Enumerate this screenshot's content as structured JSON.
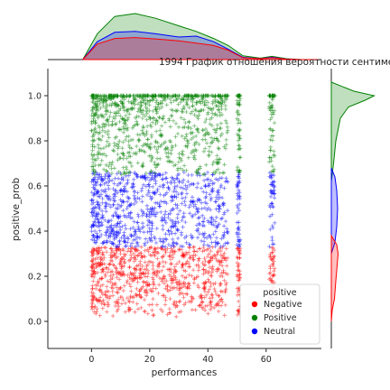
{
  "chart_data": {
    "type": "scatter",
    "title": "1994 График отношения вероятности сентиме",
    "xlabel": "performances",
    "ylabel": "positive_prob",
    "xlim": [
      -15,
      79
    ],
    "ylim": [
      -0.12,
      1.12
    ],
    "xticks": [
      0,
      20,
      40,
      60
    ],
    "yticks": [
      0.0,
      0.2,
      0.4,
      0.6,
      0.8,
      1.0
    ],
    "xtick_labels": [
      "0",
      "20",
      "40",
      "60"
    ],
    "ytick_labels": [
      "0.0",
      "0.2",
      "0.4",
      "0.6",
      "0.8",
      "1.0"
    ],
    "marker": "+",
    "grid": false,
    "legend": {
      "title": "positive",
      "placement": "lower-right",
      "entries": [
        "Negative",
        "Positive",
        "Neutral"
      ]
    },
    "series": [
      {
        "name": "Negative",
        "color": "#ff0000",
        "y_range": [
          0.02,
          0.33
        ],
        "x_clusters": [
          [
            0,
            47
          ],
          [
            50,
            51
          ],
          [
            61,
            63
          ]
        ]
      },
      {
        "name": "Positive",
        "color": "#008000",
        "y_range": [
          0.65,
          1.0
        ],
        "x_clusters": [
          [
            0,
            47
          ],
          [
            50,
            51
          ],
          [
            61,
            63
          ]
        ]
      },
      {
        "name": "Neutral",
        "color": "#0000ff",
        "y_range": [
          0.33,
          0.66
        ],
        "x_clusters": [
          [
            0,
            47
          ],
          [
            50,
            51
          ],
          [
            61,
            63
          ]
        ]
      }
    ],
    "marginal_x": {
      "type": "kde",
      "series": [
        {
          "name": "Positive",
          "x": [
            -3,
            2,
            8,
            15,
            22,
            30,
            36,
            42,
            47,
            52,
            58,
            62,
            67,
            72,
            78
          ],
          "density": [
            0.0,
            0.55,
            0.92,
            0.98,
            0.88,
            0.72,
            0.6,
            0.45,
            0.3,
            0.08,
            0.03,
            0.07,
            0.02,
            0.0,
            0.0
          ]
        },
        {
          "name": "Neutral",
          "x": [
            -3,
            2,
            8,
            15,
            22,
            30,
            36,
            42,
            47,
            52,
            58,
            62,
            67,
            72,
            78
          ],
          "density": [
            0.0,
            0.38,
            0.58,
            0.6,
            0.55,
            0.48,
            0.5,
            0.38,
            0.22,
            0.05,
            0.02,
            0.05,
            0.01,
            0.0,
            0.0
          ]
        },
        {
          "name": "Negative",
          "x": [
            -3,
            2,
            8,
            15,
            22,
            30,
            36,
            42,
            47,
            52,
            58,
            62,
            67,
            72,
            78
          ],
          "density": [
            0.0,
            0.33,
            0.45,
            0.47,
            0.44,
            0.4,
            0.35,
            0.3,
            0.2,
            0.04,
            0.02,
            0.04,
            0.01,
            0.0,
            0.0
          ]
        }
      ]
    },
    "marginal_y": {
      "type": "kde",
      "series": [
        {
          "name": "Positive",
          "y": [
            0.62,
            0.7,
            0.8,
            0.9,
            0.95,
            0.98,
            1.0,
            1.02,
            1.06
          ],
          "density": [
            0.0,
            0.05,
            0.1,
            0.2,
            0.38,
            0.75,
            0.95,
            0.5,
            0.0
          ]
        },
        {
          "name": "Neutral",
          "y": [
            0.3,
            0.35,
            0.42,
            0.5,
            0.58,
            0.64,
            0.68
          ],
          "density": [
            0.0,
            0.08,
            0.12,
            0.14,
            0.12,
            0.08,
            0.0
          ]
        },
        {
          "name": "Negative",
          "y": [
            0.0,
            0.05,
            0.1,
            0.18,
            0.25,
            0.3,
            0.34,
            0.38
          ],
          "density": [
            0.0,
            0.02,
            0.07,
            0.1,
            0.13,
            0.15,
            0.12,
            0.0
          ]
        }
      ]
    }
  }
}
